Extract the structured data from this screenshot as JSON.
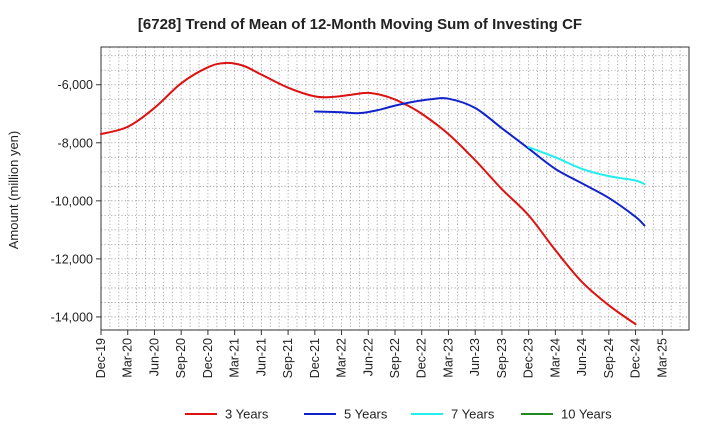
{
  "chart_data": {
    "type": "line",
    "title": "[6728]  Trend of Mean of 12-Month Moving Sum of Investing CF",
    "xlabel": "",
    "ylabel": "Amount (million yen)",
    "ylim": [
      -14450,
      -4700
    ],
    "yticks": [
      -6000,
      -8000,
      -10000,
      -12000,
      -14000
    ],
    "ytick_labels": [
      "-6,000",
      "-8,000",
      "-10,000",
      "-12,000",
      "-14,000"
    ],
    "x_range_months": [
      0,
      66
    ],
    "xtick_labels": [
      "Dec-19",
      "Mar-20",
      "Jun-20",
      "Sep-20",
      "Dec-20",
      "Mar-21",
      "Jun-21",
      "Sep-21",
      "Dec-21",
      "Mar-22",
      "Jun-22",
      "Sep-22",
      "Dec-22",
      "Mar-23",
      "Jun-23",
      "Sep-23",
      "Dec-23",
      "Mar-24",
      "Jun-24",
      "Sep-24",
      "Dec-24",
      "Mar-25"
    ],
    "grid": true,
    "legend_position": "bottom",
    "series": [
      {
        "name": "3 Years",
        "color": "#dd1111",
        "points": [
          [
            0,
            -7700
          ],
          [
            3,
            -7450
          ],
          [
            6,
            -6800
          ],
          [
            9,
            -5950
          ],
          [
            12,
            -5400
          ],
          [
            14,
            -5250
          ],
          [
            16,
            -5350
          ],
          [
            18,
            -5650
          ],
          [
            21,
            -6100
          ],
          [
            24,
            -6400
          ],
          [
            26,
            -6420
          ],
          [
            28,
            -6350
          ],
          [
            30,
            -6280
          ],
          [
            32,
            -6400
          ],
          [
            34,
            -6650
          ],
          [
            36,
            -7000
          ],
          [
            39,
            -7700
          ],
          [
            42,
            -8600
          ],
          [
            45,
            -9600
          ],
          [
            48,
            -10500
          ],
          [
            51,
            -11700
          ],
          [
            54,
            -12800
          ],
          [
            57,
            -13600
          ],
          [
            60,
            -14250
          ]
        ]
      },
      {
        "name": "5 Years",
        "color": "#1122cc",
        "points": [
          [
            24,
            -6920
          ],
          [
            27,
            -6950
          ],
          [
            29,
            -6980
          ],
          [
            31,
            -6880
          ],
          [
            33,
            -6720
          ],
          [
            35,
            -6590
          ],
          [
            37,
            -6500
          ],
          [
            39,
            -6480
          ],
          [
            42,
            -6800
          ],
          [
            45,
            -7500
          ],
          [
            48,
            -8200
          ],
          [
            51,
            -8900
          ],
          [
            54,
            -9400
          ],
          [
            57,
            -9900
          ],
          [
            60,
            -10550
          ],
          [
            61,
            -10850
          ]
        ]
      },
      {
        "name": "7 Years",
        "color": "#22eeee",
        "points": [
          [
            48,
            -8150
          ],
          [
            51,
            -8500
          ],
          [
            54,
            -8900
          ],
          [
            57,
            -9150
          ],
          [
            60,
            -9300
          ],
          [
            61,
            -9420
          ]
        ]
      },
      {
        "name": "10 Years",
        "color": "#228822",
        "points": []
      }
    ]
  }
}
